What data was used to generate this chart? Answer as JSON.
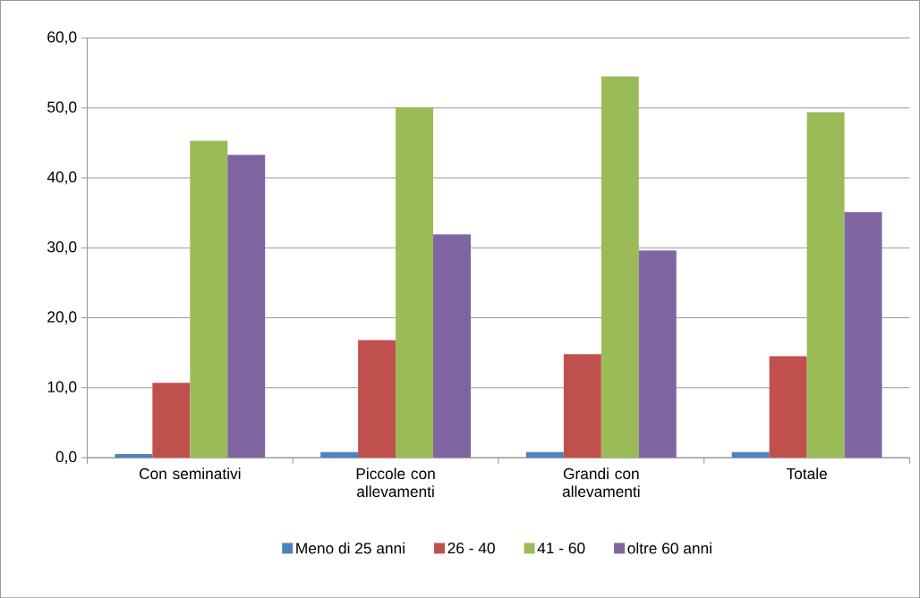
{
  "chart_data": {
    "type": "bar",
    "categories": [
      "Con seminativi",
      "Piccole con allevamenti",
      "Grandi con allevamenti",
      "Totale"
    ],
    "series": [
      {
        "name": "Meno di 25 anni",
        "color": "#4f81bd",
        "values": [
          0.5,
          0.8,
          0.8,
          0.8
        ]
      },
      {
        "name": "26 - 40",
        "color": "#c0504d",
        "values": [
          10.7,
          16.8,
          14.8,
          14.5
        ]
      },
      {
        "name": "41 - 60",
        "color": "#9bbb59",
        "values": [
          45.3,
          50.1,
          54.5,
          49.4
        ]
      },
      {
        "name": "oltre 60 anni",
        "color": "#8064a2",
        "values": [
          43.3,
          31.9,
          29.6,
          35.1
        ]
      }
    ],
    "ylim": [
      0,
      60
    ],
    "yticks": [
      {
        "value": 0,
        "label": "0,0"
      },
      {
        "value": 10,
        "label": "10,0"
      },
      {
        "value": 20,
        "label": "20,0"
      },
      {
        "value": 30,
        "label": "30,0"
      },
      {
        "value": 40,
        "label": "40,0"
      },
      {
        "value": 50,
        "label": "50,0"
      },
      {
        "value": 60,
        "label": "60,0"
      }
    ],
    "grid": "y",
    "legend": "bottom"
  }
}
